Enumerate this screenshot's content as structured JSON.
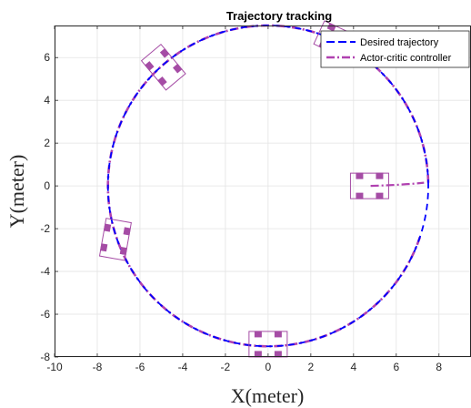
{
  "chart_data": {
    "type": "line",
    "title": "Trajectory tracking",
    "xlabel": "X(meter)",
    "ylabel": "Y(meter)",
    "xlim": [
      -10,
      9.5
    ],
    "ylim": [
      -8,
      7.5
    ],
    "xticks": [
      -10,
      -8,
      -6,
      -4,
      -2,
      0,
      2,
      4,
      6,
      8
    ],
    "yticks": [
      -8,
      -6,
      -4,
      -2,
      0,
      2,
      4,
      6
    ],
    "grid": true,
    "legend_position": "top-right",
    "series": [
      {
        "name": "Desired trajectory",
        "style": "dashed",
        "color": "#0000ff",
        "shape": "circle",
        "center": [
          0,
          0
        ],
        "radius": 7.5
      },
      {
        "name": "Actor-critic controller",
        "style": "dash-dot",
        "color": "#b041b0",
        "start_segment": [
          [
            4.8,
            0
          ],
          [
            7.3,
            0.15
          ]
        ],
        "shape": "circle",
        "center": [
          0,
          0
        ],
        "radius": 7.5
      }
    ],
    "robot_poses": [
      {
        "x": 4.75,
        "y": 0.0,
        "heading_deg": 0
      },
      {
        "x": 3.2,
        "y": 6.8,
        "heading_deg": 155
      },
      {
        "x": -4.9,
        "y": 5.55,
        "heading_deg": 130
      },
      {
        "x": -7.15,
        "y": -2.5,
        "heading_deg": -100
      },
      {
        "x": 0.0,
        "y": -7.4,
        "heading_deg": 0
      }
    ]
  }
}
